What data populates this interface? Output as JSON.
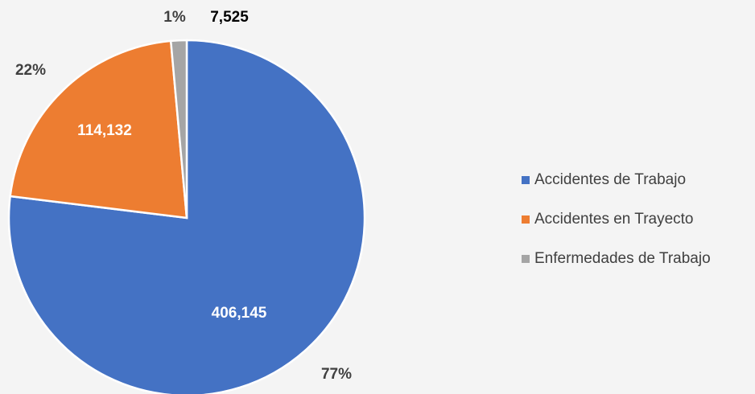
{
  "chart_data": {
    "type": "pie",
    "categories": [
      "Accidentes de Trabajo",
      "Accidentes en Trayecto",
      "Enfermedades de Trabajo"
    ],
    "values": [
      406145,
      114132,
      7525
    ],
    "value_labels": [
      "406,145",
      "114,132",
      "7,525"
    ],
    "percent_labels": [
      "77%",
      "22%",
      "1%"
    ],
    "colors": [
      "#4472c4",
      "#ed7d31",
      "#a5a5a5"
    ],
    "legend": "right"
  }
}
